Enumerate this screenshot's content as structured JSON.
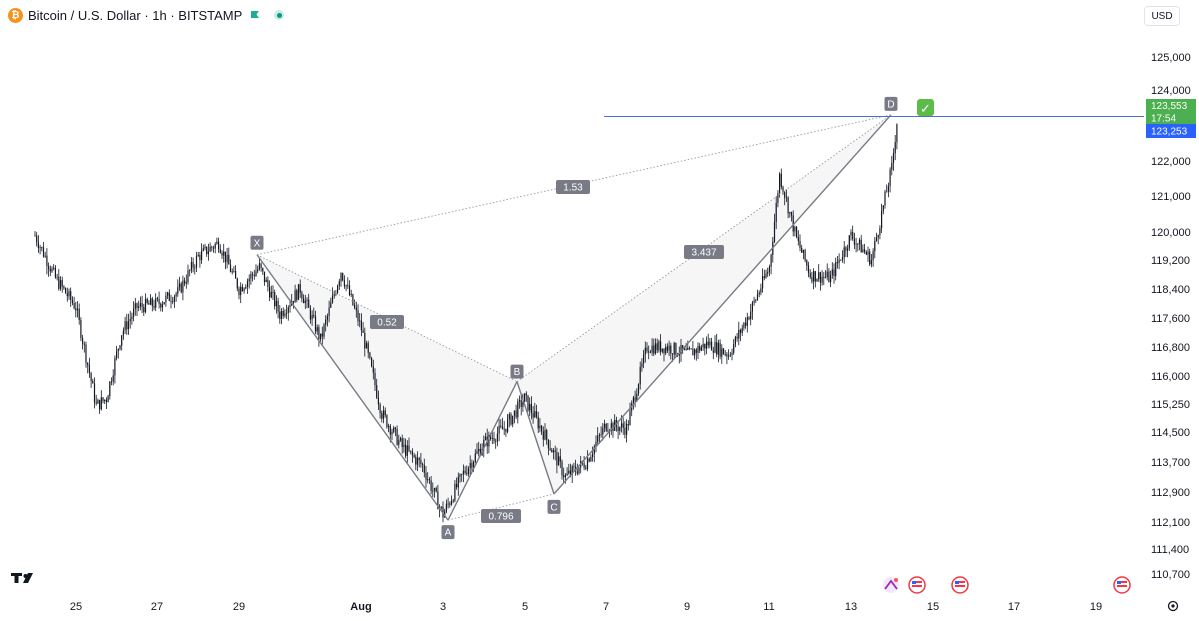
{
  "header": {
    "title": "Bitcoin / U.S. Dollar · 1h · BITSTAMP",
    "coin_glyph": "₿"
  },
  "currency_button": "USD",
  "price_tags": {
    "current_price": "123,553",
    "countdown": "17:54",
    "blue_price": "123,253"
  },
  "check_glyph": "✓",
  "chart_data": {
    "type": "candlestick",
    "x_ticks": [
      "25",
      "27",
      "29",
      "Aug",
      "3",
      "5",
      "7",
      "9",
      "11",
      "13",
      "15",
      "17",
      "19"
    ],
    "y_ticks": [
      {
        "label": "125,000",
        "value": 125000
      },
      {
        "label": "124,000",
        "value": 124000
      },
      {
        "label": "122,000",
        "value": 122000
      },
      {
        "label": "121,000",
        "value": 121000
      },
      {
        "label": "120,000",
        "value": 120000
      },
      {
        "label": "119,200",
        "value": 119200
      },
      {
        "label": "118,400",
        "value": 118400
      },
      {
        "label": "117,600",
        "value": 117600
      },
      {
        "label": "116,800",
        "value": 116800
      },
      {
        "label": "116,000",
        "value": 116000
      },
      {
        "label": "115,250",
        "value": 115250
      },
      {
        "label": "114,500",
        "value": 114500
      },
      {
        "label": "113,700",
        "value": 113700
      },
      {
        "label": "112,900",
        "value": 112900
      },
      {
        "label": "112,100",
        "value": 112100
      },
      {
        "label": "111,400",
        "value": 111400
      },
      {
        "label": "110,700",
        "value": 110700
      }
    ],
    "horizontal_line_value": 123253,
    "pattern_points": [
      {
        "label": "X",
        "price": 119350
      },
      {
        "label": "A",
        "price": 112150
      },
      {
        "label": "B",
        "price": 115850
      },
      {
        "label": "C",
        "price": 112850
      },
      {
        "label": "D",
        "price": 123300
      }
    ],
    "ratios": [
      {
        "label": "1.53"
      },
      {
        "label": "0.52"
      },
      {
        "label": "3.437"
      },
      {
        "label": "0.796"
      }
    ],
    "price_path": [
      [
        "07-24 00:00",
        119900
      ],
      [
        "07-24 12:00",
        118700
      ],
      [
        "07-25 00:00",
        117900
      ],
      [
        "07-25 12:00",
        115200
      ],
      [
        "07-25 18:00",
        115400
      ],
      [
        "07-26 03:00",
        117200
      ],
      [
        "07-26 12:00",
        117900
      ],
      [
        "07-27 00:00",
        118000
      ],
      [
        "07-27 12:00",
        118300
      ],
      [
        "07-28 00:00",
        119300
      ],
      [
        "07-28 12:00",
        119700
      ],
      [
        "07-29 00:00",
        118400
      ],
      [
        "07-29 12:00",
        119000
      ],
      [
        "07-30 00:00",
        117700
      ],
      [
        "07-30 12:00",
        118400
      ],
      [
        "07-31 00:00",
        117000
      ],
      [
        "07-31 12:00",
        118900
      ],
      [
        "08-01 00:00",
        117300
      ],
      [
        "08-01 12:00",
        115000
      ],
      [
        "08-02 00:00",
        114100
      ],
      [
        "08-02 12:00",
        113600
      ],
      [
        "08-03 00:00",
        112300
      ],
      [
        "08-03 12:00",
        113400
      ],
      [
        "08-04 00:00",
        114200
      ],
      [
        "08-04 12:00",
        114600
      ],
      [
        "08-05 00:00",
        115400
      ],
      [
        "08-05 12:00",
        114400
      ],
      [
        "08-06 00:00",
        113300
      ],
      [
        "08-06 12:00",
        113700
      ],
      [
        "08-07 00:00",
        114700
      ],
      [
        "08-07 12:00",
        114600
      ],
      [
        "08-08 00:00",
        116800
      ],
      [
        "08-08 12:00",
        116800
      ],
      [
        "08-09 00:00",
        116600
      ],
      [
        "08-09 12:00",
        116900
      ],
      [
        "08-10 00:00",
        116600
      ],
      [
        "08-10 12:00",
        117700
      ],
      [
        "08-11 00:00",
        119000
      ],
      [
        "08-11 06:00",
        121600
      ],
      [
        "08-11 16:00",
        119800
      ],
      [
        "08-12 00:00",
        118800
      ],
      [
        "08-12 12:00",
        118700
      ],
      [
        "08-13 00:00",
        119900
      ],
      [
        "08-13 12:00",
        119200
      ],
      [
        "08-14 00:00",
        121800
      ],
      [
        "08-14 04:00",
        123553
      ]
    ]
  }
}
